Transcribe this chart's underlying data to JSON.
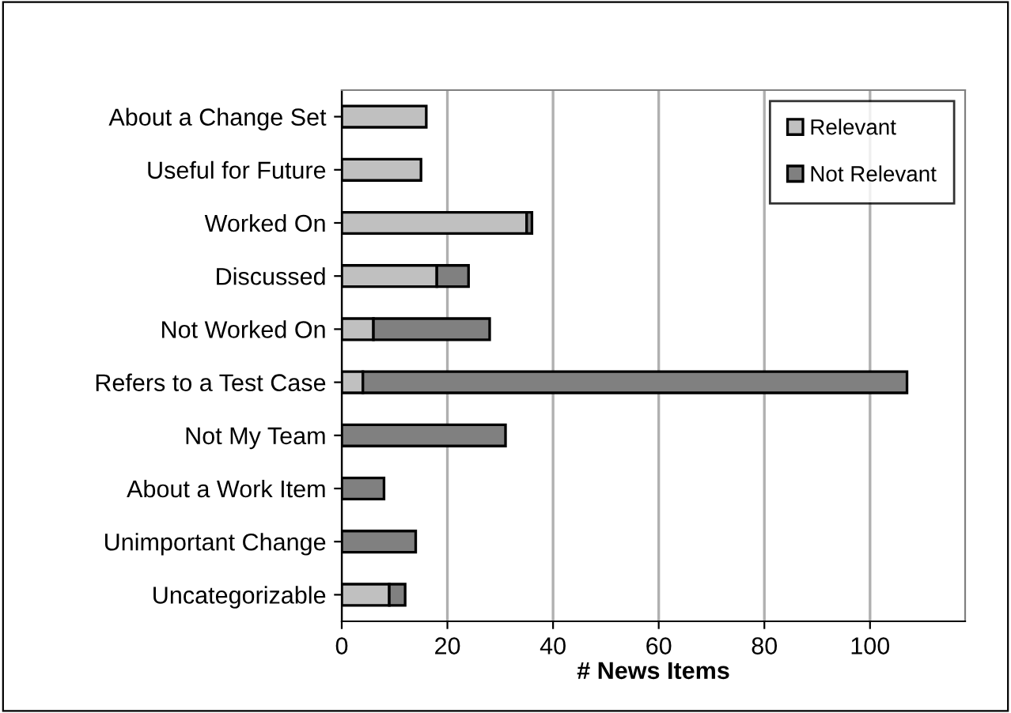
{
  "chart_data": {
    "type": "bar",
    "orientation": "horizontal",
    "stacked": true,
    "xlabel": "# News Items",
    "categories": [
      "About a Change Set",
      "Useful for Future",
      "Worked On",
      "Discussed",
      "Not Worked On",
      "Refers to a Test Case",
      "Not My Team",
      "About a Work Item",
      "Unimportant Change",
      "Uncategorizable"
    ],
    "series": [
      {
        "name": "Relevant",
        "color": "#c0c0c0",
        "values": [
          16,
          15,
          35,
          18,
          6,
          4,
          0,
          0,
          0,
          9
        ]
      },
      {
        "name": "Not Relevant",
        "color": "#808080",
        "values": [
          0,
          0,
          1,
          6,
          22,
          103,
          31,
          8,
          14,
          3
        ]
      }
    ],
    "xlim": [
      0,
      118
    ],
    "xticks": [
      0,
      20,
      40,
      60,
      80,
      100
    ],
    "grid": "x",
    "legend": "top right"
  }
}
